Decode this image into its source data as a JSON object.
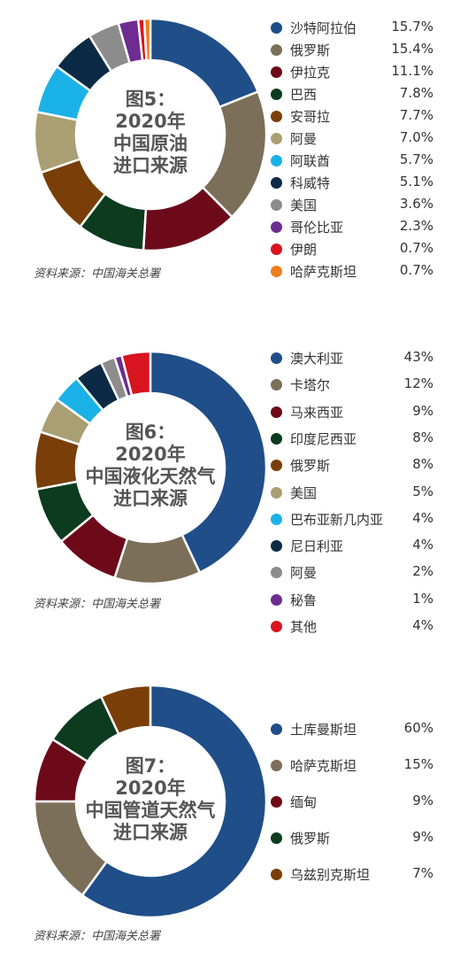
{
  "chart_data": [
    {
      "type": "pie",
      "title": "图5：2020年中国原油进口来源",
      "source": "资料来源：中国海关总署",
      "slices": [
        {
          "label": "沙特阿拉伯",
          "value": 15.7,
          "display": "15.7%",
          "color": "#1f4e89"
        },
        {
          "label": "俄罗斯",
          "value": 15.4,
          "display": "15.4%",
          "color": "#7b6f59"
        },
        {
          "label": "伊拉克",
          "value": 11.1,
          "display": "11.1%",
          "color": "#6d0a1a"
        },
        {
          "label": "巴西",
          "value": 7.8,
          "display": "7.8%",
          "color": "#0d3b1f"
        },
        {
          "label": "安哥拉",
          "value": 7.7,
          "display": "7.7%",
          "color": "#7a3e08"
        },
        {
          "label": "阿曼",
          "value": 7.0,
          "display": "7.0%",
          "color": "#a99f72"
        },
        {
          "label": "阿联酋",
          "value": 5.7,
          "display": "5.7%",
          "color": "#1ab2e6"
        },
        {
          "label": "科威特",
          "value": 5.1,
          "display": "5.1%",
          "color": "#0c2a46"
        },
        {
          "label": "美国",
          "value": 3.6,
          "display": "3.6%",
          "color": "#8c8c8c"
        },
        {
          "label": "哥伦比亚",
          "value": 2.3,
          "display": "2.3%",
          "color": "#6e2c91"
        },
        {
          "label": "伊朗",
          "value": 0.7,
          "display": "0.7%",
          "color": "#d7141f"
        },
        {
          "label": "哈萨克斯坦",
          "value": 0.7,
          "display": "0.7%",
          "color": "#f07d1d"
        }
      ]
    },
    {
      "type": "pie",
      "title": "图6：2020年中国液化天然气进口来源",
      "source": "资料来源：中国海关总署",
      "slices": [
        {
          "label": "澳大利亚",
          "value": 43,
          "display": "43%",
          "color": "#1f4e89"
        },
        {
          "label": "卡塔尔",
          "value": 12,
          "display": "12%",
          "color": "#7b6f59"
        },
        {
          "label": "马来西亚",
          "value": 9,
          "display": "9%",
          "color": "#6d0a1a"
        },
        {
          "label": "印度尼西亚",
          "value": 8,
          "display": "8%",
          "color": "#0d3b1f"
        },
        {
          "label": "俄罗斯",
          "value": 8,
          "display": "8%",
          "color": "#7a3e08"
        },
        {
          "label": "美国",
          "value": 5,
          "display": "5%",
          "color": "#a99f72"
        },
        {
          "label": "巴布亚新几内亚",
          "value": 4,
          "display": "4%",
          "color": "#1ab2e6"
        },
        {
          "label": "尼日利亚",
          "value": 4,
          "display": "4%",
          "color": "#0c2a46"
        },
        {
          "label": "阿曼",
          "value": 2,
          "display": "2%",
          "color": "#8c8c8c"
        },
        {
          "label": "秘鲁",
          "value": 1,
          "display": "1%",
          "color": "#6e2c91"
        },
        {
          "label": "其他",
          "value": 4,
          "display": "4%",
          "color": "#d7141f"
        }
      ]
    },
    {
      "type": "pie",
      "title": "图7：2020年中国管道天然气进口来源",
      "source": "资料来源：中国海关总署",
      "slices": [
        {
          "label": "土库曼斯坦",
          "value": 60,
          "display": "60%",
          "color": "#1f4e89"
        },
        {
          "label": "哈萨克斯坦",
          "value": 15,
          "display": "15%",
          "color": "#7b6f59"
        },
        {
          "label": "缅甸",
          "value": 9,
          "display": "9%",
          "color": "#6d0a1a"
        },
        {
          "label": "俄罗斯",
          "value": 9,
          "display": "9%",
          "color": "#0d3b1f"
        },
        {
          "label": "乌兹别克斯坦",
          "value": 7,
          "display": "7%",
          "color": "#7a3e08"
        }
      ]
    }
  ],
  "panels": [
    {
      "center_title": "图5：\n2020年\n中国原油\n进口来源"
    },
    {
      "center_title": "图6：\n2020年\n中国液化天然气\n进口来源"
    },
    {
      "center_title": "图7：\n2020年\n中国管道天然气\n进口来源"
    }
  ],
  "source_label": "资料来源：中国海关总署"
}
